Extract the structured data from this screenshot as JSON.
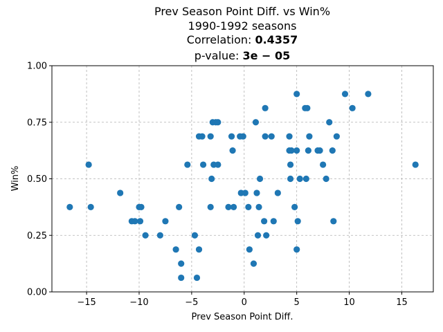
{
  "chart_data": {
    "type": "scatter",
    "title": {
      "line1": "Prev Season Point Diff. vs Win%",
      "line2": "1990-1992 seasons",
      "line3_prefix": "Correlation: ",
      "line3_value": "0.4357",
      "line4_prefix": "p-value: ",
      "line4_value": "3e − 05"
    },
    "xlabel": "Prev Season Point Diff.",
    "ylabel": "Win%",
    "xlim": [
      -18.3,
      18.0
    ],
    "ylim": [
      0.0,
      1.0
    ],
    "xticks": [
      -15,
      -10,
      -5,
      0,
      5,
      10,
      15
    ],
    "xtick_labels": [
      "−15",
      "−10",
      "−5",
      "0",
      "5",
      "10",
      "15"
    ],
    "yticks": [
      0.0,
      0.25,
      0.5,
      0.75,
      1.0
    ],
    "ytick_labels": [
      "0.00",
      "0.25",
      "0.50",
      "0.75",
      "1.00"
    ],
    "grid": true,
    "marker_color": "#1f77b4",
    "points": [
      [
        -16.6,
        0.375
      ],
      [
        -14.8,
        0.5625
      ],
      [
        -14.6,
        0.375
      ],
      [
        -11.8,
        0.4375
      ],
      [
        -10.7,
        0.3125
      ],
      [
        -10.4,
        0.3125
      ],
      [
        -10.0,
        0.375
      ],
      [
        -9.8,
        0.375
      ],
      [
        -9.9,
        0.3125
      ],
      [
        -9.4,
        0.25
      ],
      [
        -8.0,
        0.25
      ],
      [
        -7.5,
        0.3125
      ],
      [
        -6.5,
        0.1875
      ],
      [
        -6.2,
        0.375
      ],
      [
        -6.0,
        0.125
      ],
      [
        -6.0,
        0.0625
      ],
      [
        -5.4,
        0.5625
      ],
      [
        -4.7,
        0.25
      ],
      [
        -4.5,
        0.0625
      ],
      [
        -4.3,
        0.6875
      ],
      [
        -4.3,
        0.1875
      ],
      [
        -4.0,
        0.6875
      ],
      [
        -3.9,
        0.5625
      ],
      [
        -3.2,
        0.6875
      ],
      [
        -3.2,
        0.375
      ],
      [
        -3.1,
        0.5
      ],
      [
        -3.0,
        0.75
      ],
      [
        -2.9,
        0.5625
      ],
      [
        -2.7,
        0.75
      ],
      [
        -2.5,
        0.75
      ],
      [
        -2.5,
        0.5625
      ],
      [
        -1.5,
        0.375
      ],
      [
        -1.2,
        0.6875
      ],
      [
        -1.1,
        0.625
      ],
      [
        -1.0,
        0.375
      ],
      [
        -0.4,
        0.6875
      ],
      [
        -0.3,
        0.4375
      ],
      [
        -0.1,
        0.6875
      ],
      [
        0.1,
        0.4375
      ],
      [
        0.4,
        0.375
      ],
      [
        0.5,
        0.1875
      ],
      [
        0.9,
        0.125
      ],
      [
        1.1,
        0.75
      ],
      [
        1.2,
        0.4375
      ],
      [
        1.3,
        0.25
      ],
      [
        1.4,
        0.375
      ],
      [
        1.5,
        0.5
      ],
      [
        1.9,
        0.3125
      ],
      [
        2.0,
        0.8125
      ],
      [
        2.0,
        0.6875
      ],
      [
        2.1,
        0.25
      ],
      [
        2.6,
        0.6875
      ],
      [
        2.8,
        0.3125
      ],
      [
        3.2,
        0.4375
      ],
      [
        4.3,
        0.6875
      ],
      [
        4.3,
        0.625
      ],
      [
        4.4,
        0.5625
      ],
      [
        4.4,
        0.5
      ],
      [
        4.5,
        0.625
      ],
      [
        4.8,
        0.375
      ],
      [
        5.0,
        0.875
      ],
      [
        5.0,
        0.625
      ],
      [
        5.0,
        0.1875
      ],
      [
        5.1,
        0.3125
      ],
      [
        5.3,
        0.5
      ],
      [
        5.8,
        0.8125
      ],
      [
        5.9,
        0.5
      ],
      [
        6.0,
        0.8125
      ],
      [
        6.1,
        0.625
      ],
      [
        6.2,
        0.6875
      ],
      [
        7.0,
        0.625
      ],
      [
        7.2,
        0.625
      ],
      [
        7.5,
        0.5625
      ],
      [
        7.8,
        0.5
      ],
      [
        8.1,
        0.75
      ],
      [
        8.4,
        0.625
      ],
      [
        8.5,
        0.3125
      ],
      [
        8.8,
        0.6875
      ],
      [
        9.6,
        0.875
      ],
      [
        10.3,
        0.8125
      ],
      [
        11.8,
        0.875
      ],
      [
        16.3,
        0.5625
      ]
    ]
  }
}
